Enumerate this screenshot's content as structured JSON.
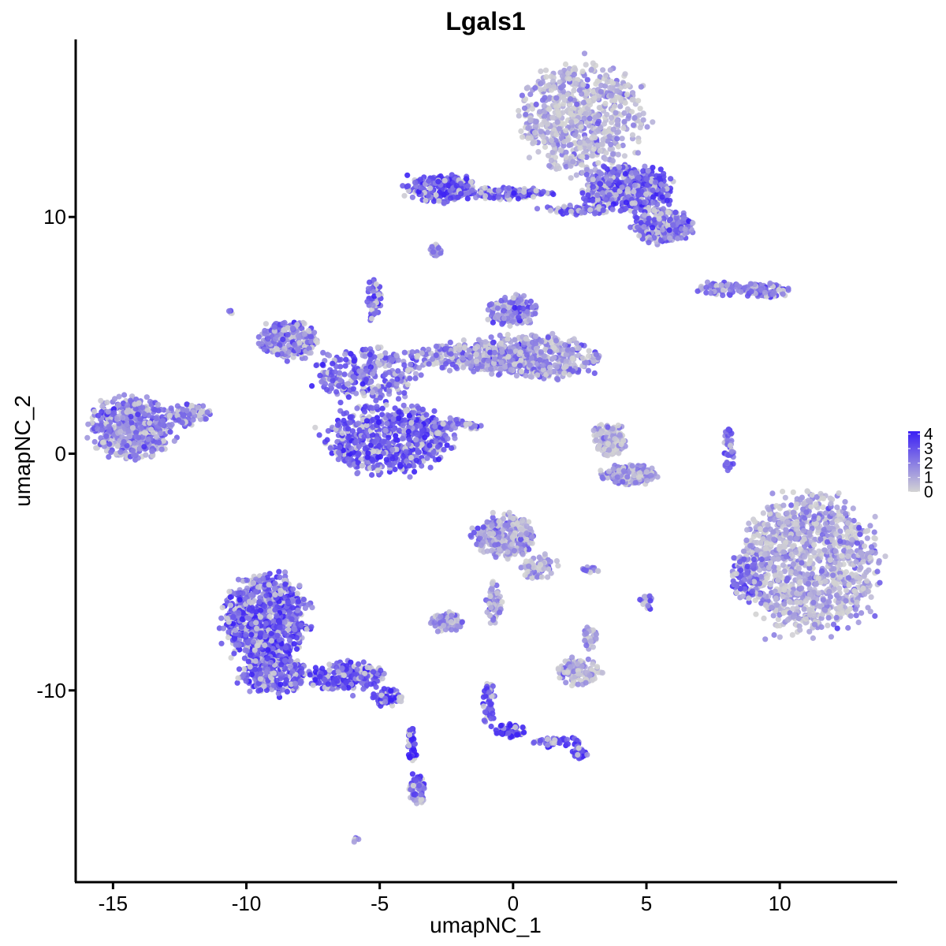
{
  "chart_data": {
    "type": "scatter",
    "title": "Lgals1",
    "xlabel": "umapNC_1",
    "ylabel": "umapNC_2",
    "xlim": [
      -16.4,
      14.4
    ],
    "ylim": [
      -18.1,
      17.5
    ],
    "xticks": [
      -15,
      -10,
      -5,
      0,
      5,
      10
    ],
    "xtick_labels": [
      "-15",
      "-10",
      "-5",
      "0",
      "5",
      "10"
    ],
    "yticks": [
      -10,
      0,
      10
    ],
    "ytick_labels": [
      "-10",
      "0",
      "10"
    ],
    "grid": false,
    "legend": {
      "placement": "right",
      "type": "colorbar",
      "min": 0,
      "max": 4.2,
      "ticks": [
        0,
        1,
        2,
        3,
        4
      ],
      "tick_labels": [
        "0",
        "1",
        "2",
        "3",
        "4"
      ]
    },
    "color_low": "#d3d3d3",
    "color_high": "#3a1ff5",
    "clusters": [
      {
        "cx": 2.6,
        "cy": 14.2,
        "rx": 2.2,
        "ry": 2.2,
        "expr": 0.9,
        "n": 700
      },
      {
        "cx": 4.3,
        "cy": 11.2,
        "rx": 1.6,
        "ry": 0.9,
        "expr": 2.8,
        "n": 450
      },
      {
        "cx": 5.6,
        "cy": 9.6,
        "rx": 1.1,
        "ry": 0.7,
        "expr": 2.4,
        "n": 260
      },
      {
        "cx": -2.7,
        "cy": 11.2,
        "rx": 1.3,
        "ry": 0.55,
        "expr": 3.1,
        "n": 220
      },
      {
        "cx": -0.3,
        "cy": 11.0,
        "rx": 1.6,
        "ry": 0.25,
        "expr": 2.8,
        "n": 120
      },
      {
        "cx": 2.5,
        "cy": 10.3,
        "rx": 1.5,
        "ry": 0.2,
        "expr": 2.8,
        "n": 70
      },
      {
        "cx": -2.9,
        "cy": 8.6,
        "rx": 0.22,
        "ry": 0.28,
        "expr": 2.2,
        "n": 25
      },
      {
        "cx": -14.3,
        "cy": 1.1,
        "rx": 1.5,
        "ry": 1.25,
        "expr": 2.0,
        "n": 500
      },
      {
        "cx": -12.2,
        "cy": 1.7,
        "rx": 0.75,
        "ry": 0.45,
        "expr": 1.9,
        "n": 80
      },
      {
        "cx": -10.6,
        "cy": 6.0,
        "rx": 0.1,
        "ry": 0.1,
        "expr": 2.0,
        "n": 4
      },
      {
        "cx": -8.4,
        "cy": 4.8,
        "rx": 1.0,
        "ry": 0.85,
        "expr": 2.1,
        "n": 220
      },
      {
        "cx": -5.4,
        "cy": 3.4,
        "rx": 2.0,
        "ry": 1.1,
        "expr": 2.5,
        "n": 280
      },
      {
        "cx": -5.2,
        "cy": 6.5,
        "rx": 0.25,
        "ry": 0.9,
        "expr": 2.6,
        "n": 55
      },
      {
        "cx": -4.7,
        "cy": 0.6,
        "rx": 2.3,
        "ry": 1.35,
        "expr": 2.9,
        "n": 650
      },
      {
        "cx": -1.5,
        "cy": 4.1,
        "rx": 2.2,
        "ry": 0.6,
        "expr": 1.9,
        "n": 280
      },
      {
        "cx": 0.9,
        "cy": 4.1,
        "rx": 2.3,
        "ry": 0.9,
        "expr": 1.4,
        "n": 420
      },
      {
        "cx": 0.0,
        "cy": 6.0,
        "rx": 0.9,
        "ry": 0.6,
        "expr": 2.0,
        "n": 150
      },
      {
        "cx": -2.1,
        "cy": 1.2,
        "rx": 0.9,
        "ry": 0.25,
        "expr": 2.2,
        "n": 45
      },
      {
        "cx": 3.6,
        "cy": 0.6,
        "rx": 0.6,
        "ry": 0.65,
        "expr": 0.9,
        "n": 120
      },
      {
        "cx": 4.3,
        "cy": -0.9,
        "rx": 1.0,
        "ry": 0.4,
        "expr": 1.3,
        "n": 170
      },
      {
        "cx": 7.8,
        "cy": 7.0,
        "rx": 0.8,
        "ry": 0.3,
        "expr": 2.2,
        "n": 50
      },
      {
        "cx": 9.4,
        "cy": 6.9,
        "rx": 0.9,
        "ry": 0.3,
        "expr": 2.1,
        "n": 85
      },
      {
        "cx": 8.1,
        "cy": 0.1,
        "rx": 0.2,
        "ry": 0.95,
        "expr": 2.4,
        "n": 45
      },
      {
        "cx": 11.1,
        "cy": -4.6,
        "rx": 2.5,
        "ry": 2.75,
        "expr": 1.1,
        "n": 1150
      },
      {
        "cx": 8.7,
        "cy": -5.2,
        "rx": 0.55,
        "ry": 0.95,
        "expr": 2.6,
        "n": 90
      },
      {
        "cx": -0.3,
        "cy": -3.5,
        "rx": 1.1,
        "ry": 0.9,
        "expr": 1.3,
        "n": 260
      },
      {
        "cx": 1.0,
        "cy": -4.8,
        "rx": 0.7,
        "ry": 0.5,
        "expr": 1.0,
        "n": 60
      },
      {
        "cx": -0.7,
        "cy": -6.3,
        "rx": 0.3,
        "ry": 0.9,
        "expr": 1.2,
        "n": 55
      },
      {
        "cx": -2.5,
        "cy": -7.1,
        "rx": 0.6,
        "ry": 0.4,
        "expr": 1.5,
        "n": 70
      },
      {
        "cx": 2.5,
        "cy": -9.2,
        "rx": 0.8,
        "ry": 0.55,
        "expr": 1.1,
        "n": 120
      },
      {
        "cx": 2.9,
        "cy": -7.8,
        "rx": 0.25,
        "ry": 0.5,
        "expr": 1.1,
        "n": 30
      },
      {
        "cx": -9.3,
        "cy": -7.0,
        "rx": 1.5,
        "ry": 1.8,
        "expr": 2.8,
        "n": 850
      },
      {
        "cx": -9.0,
        "cy": -9.3,
        "rx": 1.2,
        "ry": 0.75,
        "expr": 2.7,
        "n": 260
      },
      {
        "cx": -6.2,
        "cy": -9.4,
        "rx": 1.3,
        "ry": 0.6,
        "expr": 3.0,
        "n": 260
      },
      {
        "cx": -4.7,
        "cy": -10.3,
        "rx": 0.6,
        "ry": 0.35,
        "expr": 3.3,
        "n": 60
      },
      {
        "cx": -3.8,
        "cy": -12.3,
        "rx": 0.15,
        "ry": 0.8,
        "expr": 3.7,
        "n": 35
      },
      {
        "cx": -3.6,
        "cy": -14.2,
        "rx": 0.3,
        "ry": 0.6,
        "expr": 2.4,
        "n": 70
      },
      {
        "cx": -0.9,
        "cy": -10.5,
        "rx": 0.25,
        "ry": 1.0,
        "expr": 3.0,
        "n": 45
      },
      {
        "cx": -0.1,
        "cy": -11.7,
        "rx": 0.55,
        "ry": 0.3,
        "expr": 3.6,
        "n": 55
      },
      {
        "cx": 1.7,
        "cy": -12.2,
        "rx": 0.9,
        "ry": 0.2,
        "expr": 3.2,
        "n": 40
      },
      {
        "cx": 2.5,
        "cy": -12.6,
        "rx": 0.3,
        "ry": 0.25,
        "expr": 3.0,
        "n": 25
      },
      {
        "cx": 5.0,
        "cy": -6.3,
        "rx": 0.25,
        "ry": 0.35,
        "expr": 2.4,
        "n": 20
      },
      {
        "cx": 2.9,
        "cy": -4.9,
        "rx": 0.35,
        "ry": 0.12,
        "expr": 2.0,
        "n": 12
      },
      {
        "cx": -5.9,
        "cy": -16.3,
        "rx": 0.12,
        "ry": 0.1,
        "expr": 1.8,
        "n": 6
      }
    ]
  }
}
